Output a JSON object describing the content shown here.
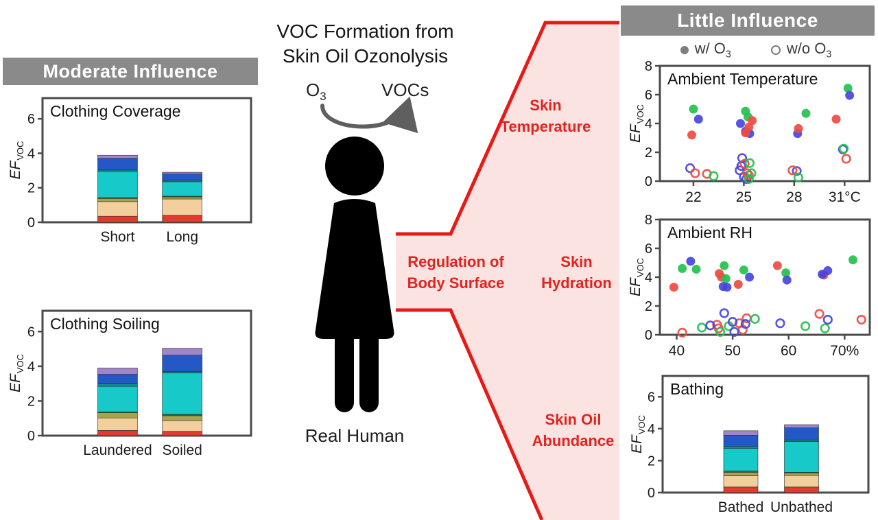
{
  "headers": {
    "moderate": "Moderate Influence",
    "little": "Little Influence"
  },
  "center": {
    "title_line1": "VOC Formation from",
    "title_line2": "Skin Oil Ozonolysis",
    "reaction": {
      "reactant": "O",
      "reactant_sub": "3",
      "product": "VOCs"
    },
    "figure_label": "Real Human"
  },
  "red_labels": {
    "regulation": [
      "Regulation of",
      "Body Surface"
    ],
    "skin_temperature": [
      "Skin",
      "Temperature"
    ],
    "skin_hydration": [
      "Skin",
      "Hydration"
    ],
    "skin_oil_abundance": [
      "Skin Oil",
      "Abundance"
    ]
  },
  "legend": {
    "with_o3": {
      "text": "w/ O",
      "sub": "3"
    },
    "without_o3": {
      "text": "w/o O",
      "sub": "3"
    }
  },
  "colors": {
    "header_gray": "#8a8a8a",
    "accent_red_text": "#e0241f",
    "region_fill": "#fbe3e2",
    "region_stroke": "#e41b17",
    "frame_gray": "#4a4a4a",
    "series_colors": {
      "green": "#23c14f",
      "blue": "#4747dd",
      "red": "#ef4b43"
    },
    "legend_gray": "#7d7d7d"
  },
  "chart_data": [
    {
      "id": "clothing_coverage",
      "type": "stacked_bar",
      "title": "Clothing Coverage",
      "ylabel": {
        "main": "EF",
        "sub": "VOC"
      },
      "categories": [
        "Short",
        "Long"
      ],
      "yticks": [
        0,
        2,
        4,
        6
      ],
      "ylim": [
        0,
        7.2
      ],
      "segment_colors": [
        "#e23b2e",
        "#f3cf9e",
        "#a8a44c",
        "#1f7a40",
        "#17c9c9",
        "#0d8f8f",
        "#2458c6",
        "#a285c9"
      ],
      "bars": [
        [
          0.35,
          0.85,
          0.18,
          0.05,
          1.52,
          0.08,
          0.68,
          0.18
        ],
        [
          0.4,
          0.95,
          0.12,
          0.04,
          0.84,
          0.08,
          0.37,
          0.1
        ]
      ],
      "totals": [
        3.9,
        2.9
      ]
    },
    {
      "id": "clothing_soiling",
      "type": "stacked_bar",
      "title": "Clothing Soiling",
      "ylabel": {
        "main": "EF",
        "sub": "VOC"
      },
      "categories": [
        "Laundered",
        "Soiled"
      ],
      "yticks": [
        0,
        2,
        4,
        6
      ],
      "ylim": [
        0,
        7.2
      ],
      "segment_colors": [
        "#e23b2e",
        "#f3cf9e",
        "#a8a44c",
        "#1f7a40",
        "#17c9c9",
        "#0d8f8f",
        "#2458c6",
        "#a285c9"
      ],
      "bars": [
        [
          0.3,
          0.72,
          0.3,
          0.04,
          1.48,
          0.15,
          0.55,
          0.36
        ],
        [
          0.25,
          0.62,
          0.28,
          0.08,
          2.38,
          0.08,
          0.95,
          0.4
        ]
      ],
      "totals": [
        3.9,
        5.05
      ]
    },
    {
      "id": "ambient_temperature",
      "type": "scatter",
      "title": "Ambient Temperature",
      "ylabel": {
        "main": "EF",
        "sub": "VOC"
      },
      "xlim": [
        20,
        32.5
      ],
      "ylim": [
        0,
        8
      ],
      "xticks": [
        22,
        25,
        28,
        31
      ],
      "xtick_labels": [
        "22",
        "25",
        "28",
        "31°C"
      ],
      "yticks": [
        0,
        2,
        4,
        6,
        8
      ],
      "series": [
        {
          "name": "w/ O3",
          "style": "filled",
          "color": "green",
          "points": [
            [
              22.0,
              5.0
            ],
            [
              25.1,
              4.85
            ],
            [
              25.25,
              4.45
            ],
            [
              28.7,
              4.7
            ],
            [
              31.2,
              6.45
            ]
          ]
        },
        {
          "name": "w/ O3",
          "style": "filled",
          "color": "blue",
          "points": [
            [
              22.3,
              4.3
            ],
            [
              24.8,
              4.0
            ],
            [
              25.1,
              3.45
            ],
            [
              25.35,
              3.3
            ],
            [
              28.2,
              3.3
            ],
            [
              31.3,
              5.95
            ]
          ]
        },
        {
          "name": "w/ O3",
          "style": "filled",
          "color": "red",
          "points": [
            [
              21.9,
              3.2
            ],
            [
              25.5,
              4.2
            ],
            [
              25.3,
              3.75
            ],
            [
              25.1,
              3.35
            ],
            [
              28.25,
              3.65
            ],
            [
              30.5,
              4.3
            ]
          ]
        },
        {
          "name": "w/o O3",
          "style": "open",
          "color": "blue",
          "points": [
            [
              21.8,
              0.9
            ],
            [
              24.9,
              1.6
            ],
            [
              24.85,
              1.05
            ],
            [
              24.75,
              0.75
            ],
            [
              25.0,
              0.3
            ],
            [
              25.15,
              0.15
            ],
            [
              28.15,
              0.7
            ],
            [
              30.9,
              2.2
            ]
          ]
        },
        {
          "name": "w/o O3",
          "style": "open",
          "color": "red",
          "points": [
            [
              22.1,
              0.55
            ],
            [
              22.8,
              0.5
            ],
            [
              25.05,
              1.2
            ],
            [
              25.2,
              0.55
            ],
            [
              25.3,
              0.4
            ],
            [
              27.9,
              0.75
            ],
            [
              31.1,
              1.55
            ]
          ]
        },
        {
          "name": "w/o O3",
          "style": "open",
          "color": "green",
          "points": [
            [
              23.2,
              0.35
            ],
            [
              25.35,
              1.25
            ],
            [
              25.45,
              0.55
            ],
            [
              25.3,
              0.15
            ],
            [
              28.25,
              0.25
            ],
            [
              30.95,
              2.25
            ]
          ]
        }
      ]
    },
    {
      "id": "ambient_rh",
      "type": "scatter",
      "title": "Ambient RH",
      "ylabel": {
        "main": "EF",
        "sub": "VOC"
      },
      "xlim": [
        37,
        74.5
      ],
      "ylim": [
        0,
        8
      ],
      "xticks": [
        40,
        50,
        60,
        70
      ],
      "xtick_labels": [
        "40",
        "50",
        "60",
        "70%"
      ],
      "yticks": [
        0,
        2,
        4,
        6,
        8
      ],
      "series": [
        {
          "name": "w/ O3",
          "style": "filled",
          "color": "red",
          "points": [
            [
              39.5,
              3.3
            ],
            [
              47.6,
              4.25
            ],
            [
              48.0,
              4.0
            ],
            [
              51.0,
              3.5
            ],
            [
              58.0,
              4.8
            ],
            [
              66.3,
              4.15
            ]
          ]
        },
        {
          "name": "w/ O3",
          "style": "filled",
          "color": "green",
          "points": [
            [
              41.0,
              4.6
            ],
            [
              43.5,
              4.55
            ],
            [
              48.5,
              4.8
            ],
            [
              48.8,
              3.9
            ],
            [
              52.0,
              4.5
            ],
            [
              59.5,
              4.3
            ],
            [
              71.5,
              5.2
            ]
          ]
        },
        {
          "name": "w/ O3",
          "style": "filled",
          "color": "blue",
          "points": [
            [
              42.5,
              5.1
            ],
            [
              48.3,
              3.35
            ],
            [
              49.0,
              3.3
            ],
            [
              53.0,
              4.0
            ],
            [
              59.7,
              3.8
            ],
            [
              66.0,
              4.2
            ],
            [
              67.0,
              4.45
            ]
          ]
        },
        {
          "name": "w/o O3",
          "style": "open",
          "color": "red",
          "points": [
            [
              41.0,
              0.15
            ],
            [
              47.2,
              0.7
            ],
            [
              47.5,
              0.45
            ],
            [
              51.2,
              0.8
            ],
            [
              51.8,
              0.35
            ],
            [
              52.5,
              1.15
            ],
            [
              65.5,
              1.45
            ],
            [
              73.0,
              1.05
            ]
          ]
        },
        {
          "name": "w/o O3",
          "style": "open",
          "color": "green",
          "points": [
            [
              44.5,
              0.5
            ],
            [
              47.8,
              0.2
            ],
            [
              49.3,
              0.6
            ],
            [
              54.0,
              1.1
            ],
            [
              63.0,
              0.6
            ],
            [
              66.5,
              0.45
            ]
          ]
        },
        {
          "name": "w/o O3",
          "style": "open",
          "color": "blue",
          "points": [
            [
              46.0,
              0.65
            ],
            [
              48.5,
              1.5
            ],
            [
              50.0,
              0.9
            ],
            [
              50.3,
              0.2
            ],
            [
              52.3,
              0.75
            ],
            [
              58.5,
              0.8
            ],
            [
              67.0,
              1.05
            ]
          ]
        }
      ]
    },
    {
      "id": "bathing",
      "type": "stacked_bar",
      "title": "Bathing",
      "ylabel": {
        "main": "EF",
        "sub": "VOC"
      },
      "categories": [
        "Bathed",
        "Unbathed"
      ],
      "yticks": [
        0,
        2,
        4,
        6
      ],
      "ylim": [
        0,
        7.3
      ],
      "segment_colors": [
        "#e23b2e",
        "#f3cf9e",
        "#a8a44c",
        "#1f7a40",
        "#17c9c9",
        "#0d8f8f",
        "#2458c6",
        "#a285c9"
      ],
      "bars": [
        [
          0.35,
          0.7,
          0.22,
          0.08,
          1.42,
          0.12,
          0.7,
          0.28
        ],
        [
          0.35,
          0.72,
          0.15,
          0.05,
          1.93,
          0.09,
          0.76,
          0.2
        ]
      ],
      "totals": [
        3.9,
        4.25
      ]
    }
  ]
}
